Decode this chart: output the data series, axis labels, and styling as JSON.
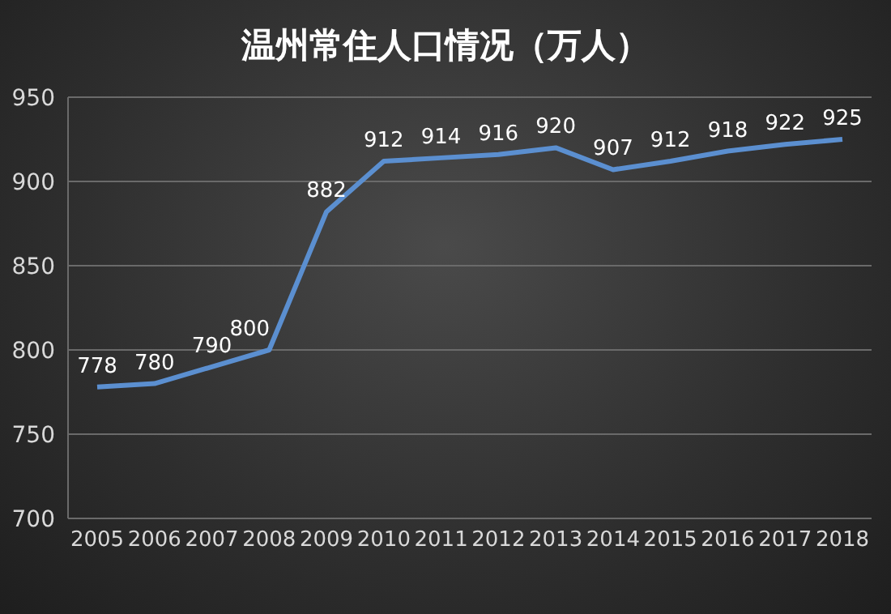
{
  "chart_data": {
    "type": "line",
    "title": "温州常住人口情况（万人）",
    "categories": [
      "2005",
      "2006",
      "2007",
      "2008",
      "2009",
      "2010",
      "2011",
      "2012",
      "2013",
      "2014",
      "2015",
      "2016",
      "2017",
      "2018"
    ],
    "series": [
      {
        "color": "#5b8fd0",
        "values": [
          778,
          780,
          790,
          800,
          882,
          912,
          914,
          916,
          920,
          907,
          912,
          918,
          922,
          925
        ]
      }
    ],
    "ylim": [
      700,
      950
    ],
    "yticks": [
      700,
      750,
      800,
      850,
      900,
      950
    ],
    "grid": "y",
    "data_labels": true,
    "marker": "none",
    "line_style": "solid"
  }
}
